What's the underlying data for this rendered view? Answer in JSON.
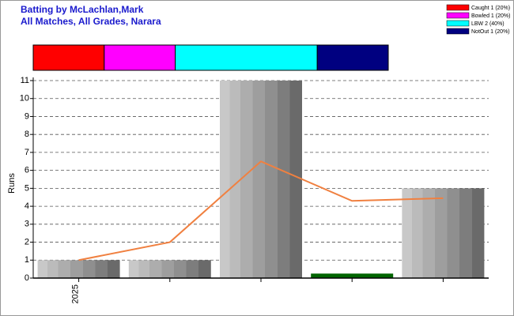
{
  "chart_data": {
    "type": "bar",
    "title": "Batting by McLachlan,Mark",
    "subtitle": "All Matches, All Grades, Narara",
    "ylabel": "Runs",
    "categories": [
      "2025",
      null,
      null,
      null,
      null
    ],
    "values": [
      1,
      1,
      11,
      0.25,
      5
    ],
    "colors": [
      "gray",
      "gray",
      "gray",
      "#006400",
      "gray"
    ],
    "line_values": [
      1,
      2,
      6.5,
      4.3,
      4.45
    ],
    "line_color": "#f08040",
    "ylim": [
      0,
      11
    ],
    "yticks": [
      0,
      1,
      2,
      3,
      4,
      5,
      6,
      7,
      8,
      9,
      10,
      11
    ],
    "grid": true,
    "breakdown": {
      "labels": [
        "Caught 1 (20%)",
        "Bowled 1 (20%)",
        "LBW 2 (40%)",
        "NotOut 1 (20%)"
      ],
      "values": [
        20,
        20,
        40,
        20
      ],
      "colors": [
        "#ff0000",
        "#ff00ff",
        "#00ffff",
        "#000080"
      ]
    }
  }
}
